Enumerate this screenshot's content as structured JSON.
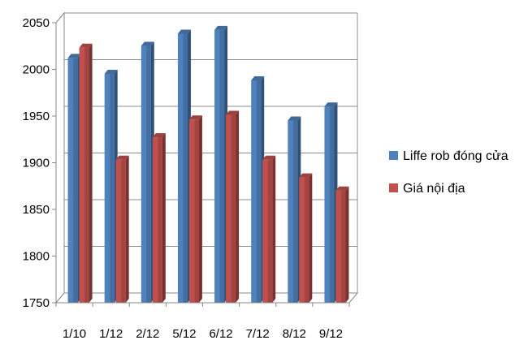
{
  "chart_data": {
    "type": "bar",
    "title": "",
    "xlabel": "",
    "ylabel": "",
    "categories": [
      "1/10",
      "1/12",
      "2/12",
      "5/12",
      "6/12",
      "7/12",
      "8/12",
      "9/12"
    ],
    "series": [
      {
        "name": "Liffe rob đóng cửa",
        "color": "#4f81bd",
        "values": [
          2014,
          1997,
          2027,
          2040,
          2044,
          1990,
          1947,
          1962
        ]
      },
      {
        "name": "Giá nội địa",
        "color": "#c0504d",
        "values": [
          2025,
          1905,
          1929,
          1948,
          1953,
          1905,
          1886,
          1872
        ]
      }
    ],
    "ylim": [
      1750,
      2050
    ],
    "yticks": [
      "1750",
      "1800",
      "1850",
      "1900",
      "1950",
      "2000",
      "2050"
    ],
    "grid": true,
    "legend_position": "right",
    "style": "3d-clustered-column"
  }
}
